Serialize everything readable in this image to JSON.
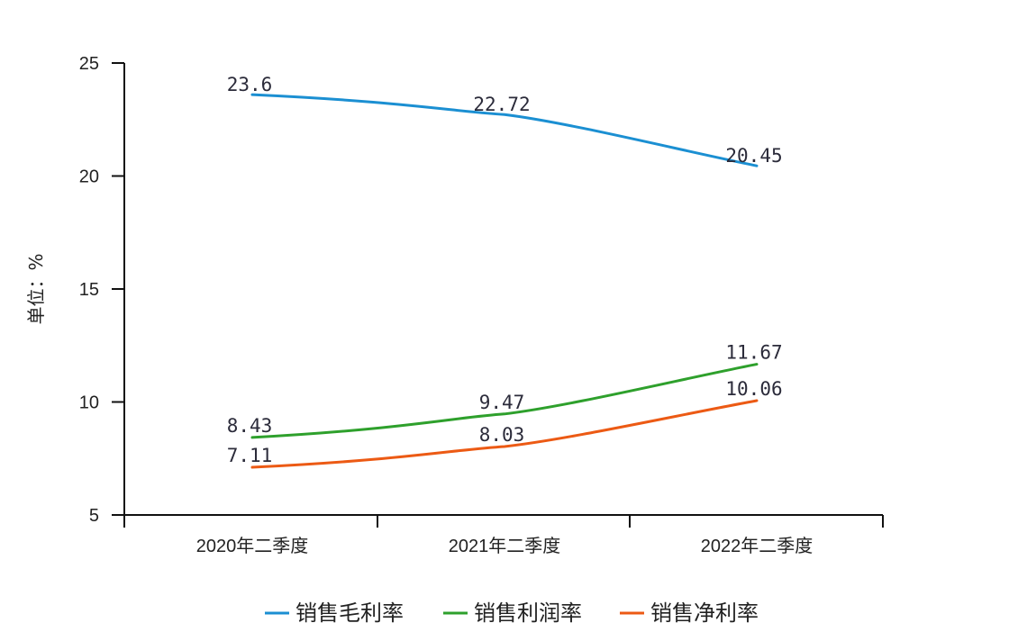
{
  "chart_data": {
    "type": "line",
    "title": "",
    "xlabel": "",
    "ylabel": "单位：%",
    "categories": [
      "2020年二季度",
      "2021年二季度",
      "2022年二季度"
    ],
    "ylim": [
      5,
      25
    ],
    "yticks": [
      5,
      10,
      15,
      20,
      25
    ],
    "grid": false,
    "legend_position": "bottom",
    "series": [
      {
        "name": "销售毛利率",
        "color": "#1b8fd2",
        "values": [
          23.6,
          22.72,
          20.45
        ],
        "labels": [
          "23.6",
          "22.72",
          "20.45"
        ]
      },
      {
        "name": "销售利润率",
        "color": "#2ea02c",
        "values": [
          8.43,
          9.47,
          11.67
        ],
        "labels": [
          "8.43",
          "9.47",
          "11.67"
        ]
      },
      {
        "name": "销售净利率",
        "color": "#ec5a14",
        "values": [
          7.11,
          8.03,
          10.06
        ],
        "labels": [
          "7.11",
          "8.03",
          "10.06"
        ]
      }
    ]
  }
}
